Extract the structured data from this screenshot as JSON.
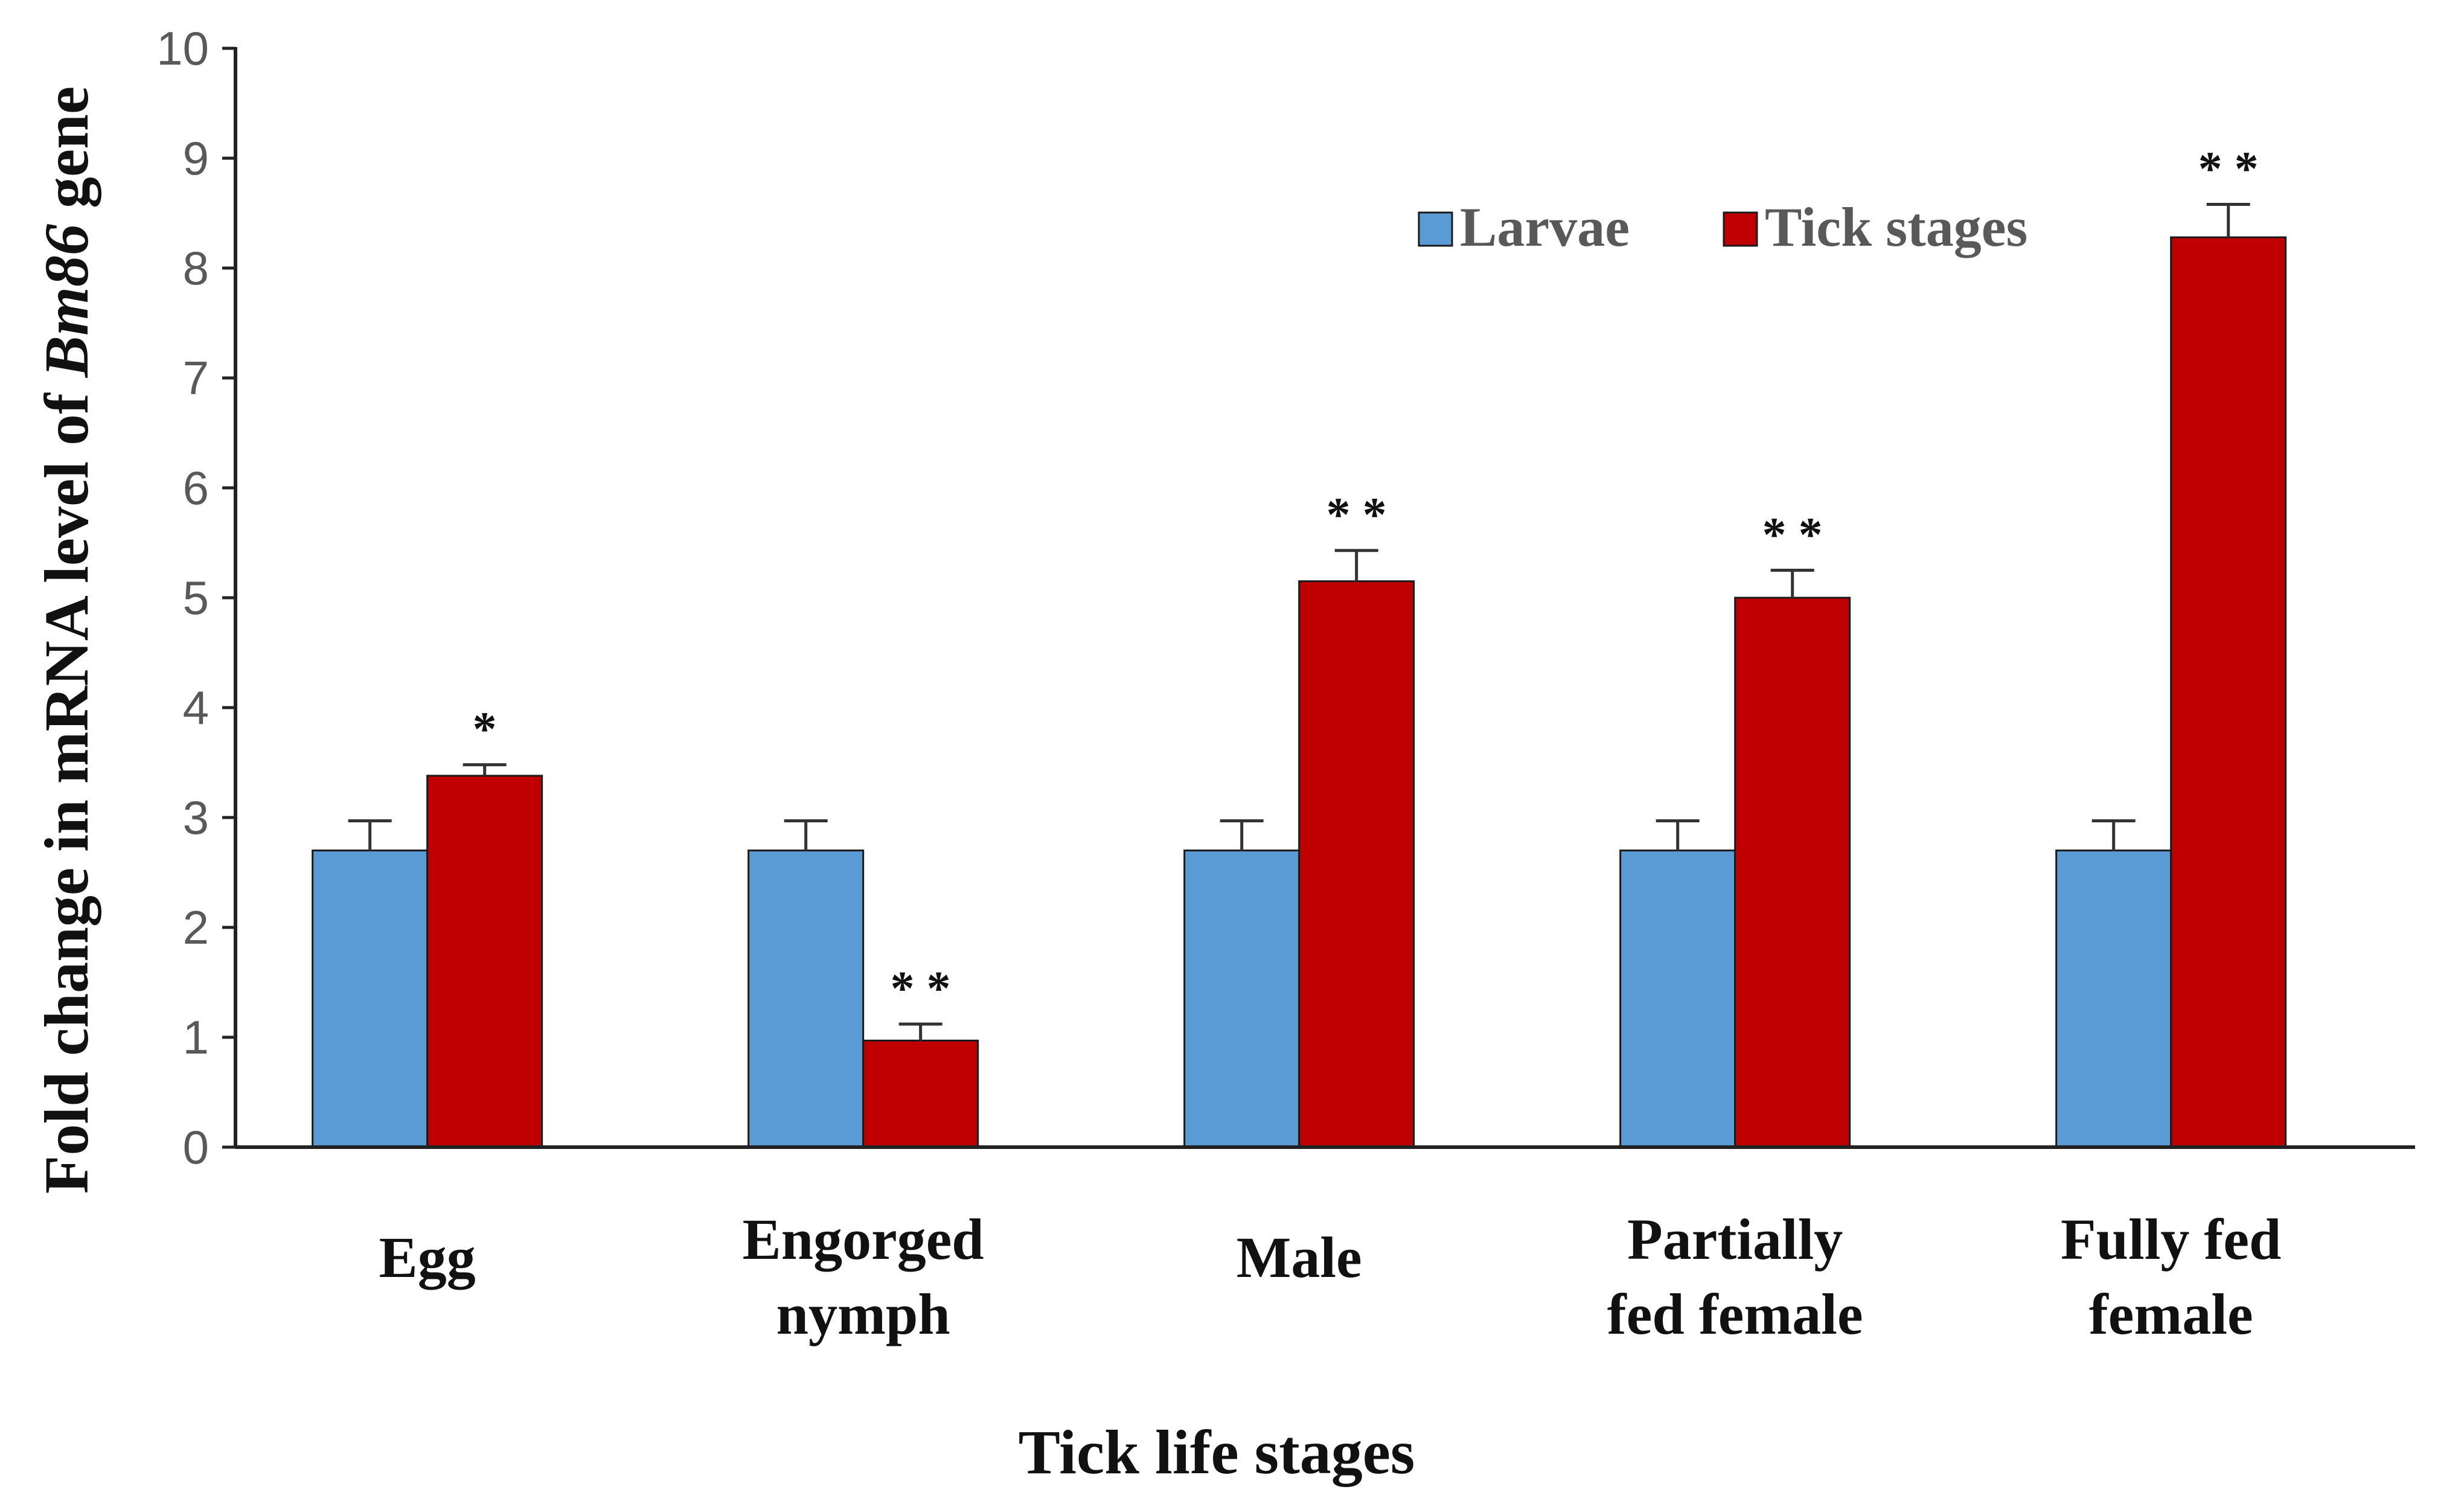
{
  "chart_data": {
    "type": "bar",
    "title": "",
    "xlabel": "Tick life stages",
    "ylabel_prefix": "Fold change in mRNA level of ",
    "ylabel_gene": "Bm86",
    "ylabel_suffix": " gene",
    "ylim": [
      0,
      10
    ],
    "yticks": [
      "0",
      "1",
      "2",
      "3",
      "4",
      "5",
      "6",
      "7",
      "8",
      "9",
      "10"
    ],
    "categories": [
      [
        "Egg"
      ],
      [
        "Engorged",
        "nymph"
      ],
      [
        "Male"
      ],
      [
        "Partially",
        "fed female"
      ],
      [
        "Fully  fed",
        "female"
      ]
    ],
    "legend_position": "top-right",
    "series": [
      {
        "name": "Larvae",
        "color": "#5b9bd5",
        "values": [
          2.7,
          2.7,
          2.7,
          2.7,
          2.7
        ],
        "errors": [
          0.27,
          0.27,
          0.27,
          0.27,
          0.27
        ],
        "significance": [
          "",
          "",
          "",
          "",
          ""
        ]
      },
      {
        "name": "Tick stages",
        "color": "#c00000",
        "values": [
          3.38,
          0.97,
          5.15,
          5.0,
          8.28
        ],
        "errors": [
          0.1,
          0.15,
          0.28,
          0.25,
          0.3
        ],
        "significance": [
          "*",
          "* *",
          "* *",
          "* *",
          "* *"
        ]
      }
    ]
  }
}
